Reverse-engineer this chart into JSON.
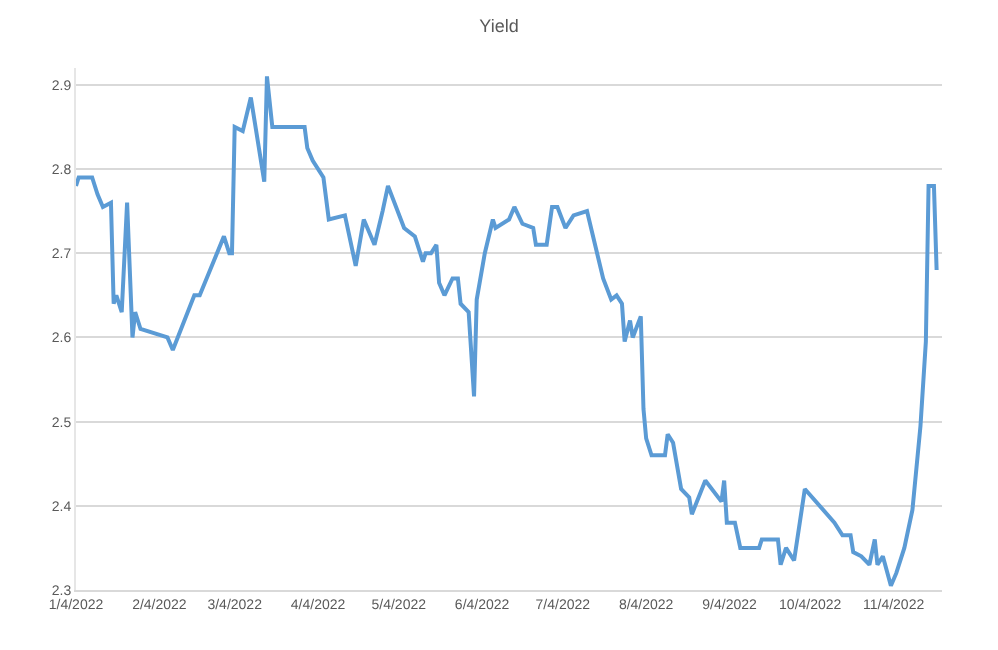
{
  "chart_data": {
    "type": "line",
    "title": "Yield",
    "x": [
      "2022-01-04",
      "2022-01-05",
      "2022-01-10",
      "2022-01-12",
      "2022-01-14",
      "2022-01-17",
      "2022-01-18",
      "2022-01-19",
      "2022-01-21",
      "2022-01-23",
      "2022-01-25",
      "2022-01-26",
      "2022-01-28",
      "2022-02-07",
      "2022-02-09",
      "2022-02-17",
      "2022-02-19",
      "2022-02-28",
      "2022-03-02",
      "2022-03-03",
      "2022-03-04",
      "2022-03-07",
      "2022-03-10",
      "2022-03-15",
      "2022-03-16",
      "2022-03-18",
      "2022-03-30",
      "2022-03-31",
      "2022-04-02",
      "2022-04-06",
      "2022-04-08",
      "2022-04-14",
      "2022-04-18",
      "2022-04-21",
      "2022-04-25",
      "2022-04-28",
      "2022-04-30",
      "2022-05-06",
      "2022-05-10",
      "2022-05-13",
      "2022-05-14",
      "2022-05-16",
      "2022-05-18",
      "2022-05-19",
      "2022-05-21",
      "2022-05-24",
      "2022-05-26",
      "2022-05-27",
      "2022-05-30",
      "2022-06-01",
      "2022-06-02",
      "2022-06-05",
      "2022-06-08",
      "2022-06-09",
      "2022-06-14",
      "2022-06-16",
      "2022-06-19",
      "2022-06-23",
      "2022-06-24",
      "2022-06-28",
      "2022-06-30",
      "2022-07-02",
      "2022-07-05",
      "2022-07-08",
      "2022-07-13",
      "2022-07-19",
      "2022-07-22",
      "2022-07-24",
      "2022-07-26",
      "2022-07-27",
      "2022-07-29",
      "2022-07-30",
      "2022-08-02",
      "2022-08-03",
      "2022-08-04",
      "2022-08-06",
      "2022-08-11",
      "2022-08-12",
      "2022-08-14",
      "2022-08-17",
      "2022-08-20",
      "2022-08-21",
      "2022-08-26",
      "2022-09-01",
      "2022-09-02",
      "2022-09-03",
      "2022-09-06",
      "2022-09-08",
      "2022-09-11",
      "2022-09-15",
      "2022-09-16",
      "2022-09-22",
      "2022-09-23",
      "2022-09-25",
      "2022-09-28",
      "2022-10-02",
      "2022-10-13",
      "2022-10-16",
      "2022-10-19",
      "2022-10-20",
      "2022-10-23",
      "2022-10-26",
      "2022-10-28",
      "2022-10-29",
      "2022-10-31",
      "2022-11-03",
      "2022-11-05",
      "2022-11-08",
      "2022-11-11",
      "2022-11-14",
      "2022-11-16",
      "2022-11-17",
      "2022-11-19",
      "2022-11-20"
    ],
    "series": [
      {
        "color": "#5b9bd5",
        "values": [
          2.78,
          2.79,
          2.79,
          2.77,
          2.755,
          2.76,
          2.64,
          2.65,
          2.63,
          2.76,
          2.6,
          2.63,
          2.61,
          2.6,
          2.585,
          2.65,
          2.65,
          2.72,
          2.7,
          2.7,
          2.85,
          2.845,
          2.885,
          2.785,
          2.91,
          2.85,
          2.85,
          2.825,
          2.81,
          2.79,
          2.74,
          2.745,
          2.685,
          2.74,
          2.71,
          2.75,
          2.78,
          2.73,
          2.72,
          2.69,
          2.7,
          2.7,
          2.71,
          2.665,
          2.65,
          2.67,
          2.67,
          2.64,
          2.63,
          2.53,
          2.645,
          2.7,
          2.74,
          2.73,
          2.74,
          2.755,
          2.735,
          2.73,
          2.71,
          2.71,
          2.755,
          2.755,
          2.73,
          2.745,
          2.75,
          2.67,
          2.645,
          2.65,
          2.64,
          2.595,
          2.62,
          2.6,
          2.625,
          2.515,
          2.48,
          2.46,
          2.46,
          2.485,
          2.475,
          2.42,
          2.41,
          2.39,
          2.43,
          2.405,
          2.43,
          2.38,
          2.38,
          2.35,
          2.35,
          2.35,
          2.36,
          2.36,
          2.33,
          2.35,
          2.335,
          2.42,
          2.38,
          2.365,
          2.365,
          2.345,
          2.34,
          2.33,
          2.36,
          2.33,
          2.34,
          2.305,
          2.32,
          2.35,
          2.395,
          2.495,
          2.595,
          2.78,
          2.78,
          2.68
        ]
      }
    ],
    "xlim": [
      "2022-01-04",
      "2022-11-22"
    ],
    "xticks": [
      {
        "value": "2022-01-04",
        "label": "1/4/2022"
      },
      {
        "value": "2022-02-04",
        "label": "2/4/2022"
      },
      {
        "value": "2022-03-04",
        "label": "3/4/2022"
      },
      {
        "value": "2022-04-04",
        "label": "4/4/2022"
      },
      {
        "value": "2022-05-04",
        "label": "5/4/2022"
      },
      {
        "value": "2022-06-04",
        "label": "6/4/2022"
      },
      {
        "value": "2022-07-04",
        "label": "7/4/2022"
      },
      {
        "value": "2022-08-04",
        "label": "8/4/2022"
      },
      {
        "value": "2022-09-04",
        "label": "9/4/2022"
      },
      {
        "value": "2022-10-04",
        "label": "10/4/2022"
      },
      {
        "value": "2022-11-04",
        "label": "11/4/2022"
      }
    ],
    "ylim": [
      2.3,
      2.92
    ],
    "yticks": [
      2.3,
      2.4,
      2.5,
      2.6,
      2.7,
      2.8,
      2.9
    ],
    "grid": "y",
    "legend": false,
    "marker": "none",
    "line_style": "solid"
  }
}
